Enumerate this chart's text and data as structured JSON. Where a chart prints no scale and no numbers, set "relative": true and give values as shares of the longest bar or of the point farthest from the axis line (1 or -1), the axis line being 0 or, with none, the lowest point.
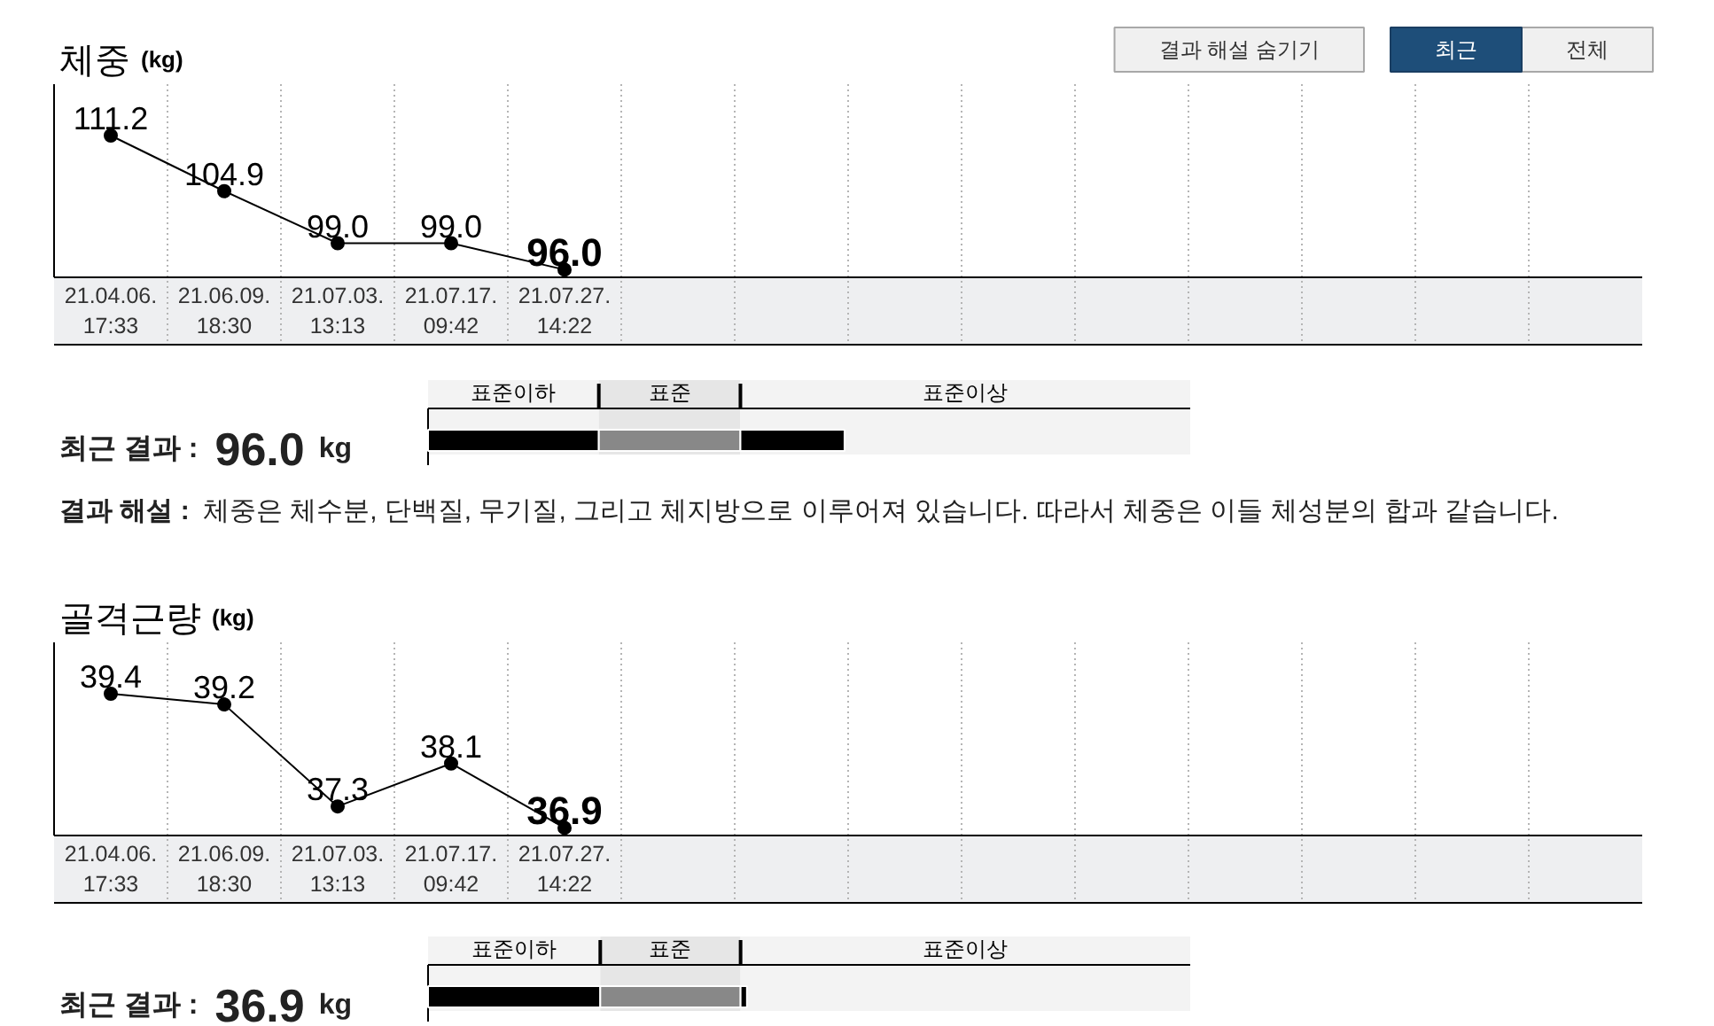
{
  "chart_data": [
    {
      "type": "line",
      "title": "체중",
      "ylabel": "(kg)",
      "categories": [
        "21.04.06.\n17:33",
        "21.06.09.\n18:30",
        "21.07.03.\n13:13",
        "21.07.17.\n09:42",
        "21.07.27.\n14:22",
        null,
        null,
        null,
        null,
        null,
        null,
        null,
        null,
        null
      ],
      "values": [
        111.2,
        104.9,
        99.0,
        99.0,
        96.0,
        null,
        null,
        null,
        null,
        null,
        null,
        null,
        null,
        null
      ],
      "value_labels": [
        "111.2",
        "104.9",
        "99.0",
        "99.0",
        "96.0",
        null,
        null,
        null,
        null,
        null,
        null,
        null,
        null,
        null
      ],
      "color": "#000000",
      "marker": "circle",
      "line_style": "solid",
      "grid": "x",
      "annotations": [
        "결과 해설 숨기기",
        "최근",
        "전체"
      ]
    },
    {
      "type": "bar",
      "orientation": "horizontal",
      "stacked": true,
      "relative": true,
      "ylabel": "최근 결과 :",
      "categories": [
        null
      ],
      "series": [
        {
          "color": "#000000",
          "values": [
            0.41
          ]
        },
        {
          "color": "#888888",
          "values": [
            0.34
          ]
        },
        {
          "color": "#000000",
          "values": [
            0.25
          ]
        }
      ],
      "bands": [
        {
          "axis": "x",
          "from": 0,
          "to": 0.41,
          "label": "표준이하",
          "color": "#f3f3f3"
        },
        {
          "axis": "x",
          "from": 0.41,
          "to": 0.75,
          "label": "표준",
          "color": "#e6e6e6"
        },
        {
          "axis": "x",
          "from": 0.75,
          "to": 1.83,
          "label": "표준이상",
          "color": "#f3f3f3"
        }
      ],
      "annotations": [
        "96.0",
        "kg",
        "결과 해설 :",
        "체중은 체수분, 단백질, 무기질, 그리고 체지방으로 이루어져 있습니다. 따라서 체중은 이들 체성분의 합과 같습니다."
      ]
    },
    {
      "type": "line",
      "title": "골격근량",
      "ylabel": "(kg)",
      "categories": [
        "21.04.06.\n17:33",
        "21.06.09.\n18:30",
        "21.07.03.\n13:13",
        "21.07.17.\n09:42",
        "21.07.27.\n14:22",
        null,
        null,
        null,
        null,
        null,
        null,
        null,
        null,
        null
      ],
      "values": [
        39.4,
        39.2,
        37.3,
        38.1,
        36.9,
        null,
        null,
        null,
        null,
        null,
        null,
        null,
        null,
        null
      ],
      "value_labels": [
        "39.4",
        "39.2",
        "37.3",
        "38.1",
        "36.9",
        null,
        null,
        null,
        null,
        null,
        null,
        null,
        null,
        null
      ],
      "color": "#000000",
      "marker": "circle",
      "line_style": "solid",
      "grid": "x"
    },
    {
      "type": "bar",
      "orientation": "horizontal",
      "stacked": true,
      "relative": true,
      "ylabel": "최근 결과 :",
      "categories": [
        null
      ],
      "series": [
        {
          "color": "#000000",
          "values": [
            0.54
          ]
        },
        {
          "color": "#888888",
          "values": [
            0.44
          ]
        },
        {
          "color": "#000000",
          "values": [
            0.02
          ]
        }
      ],
      "bands": [
        {
          "axis": "x",
          "from": 0,
          "to": 0.54,
          "label": "표준이하",
          "color": "#f3f3f3"
        },
        {
          "axis": "x",
          "from": 0.54,
          "to": 0.98,
          "label": "표준",
          "color": "#e6e6e6"
        },
        {
          "axis": "x",
          "from": 0.98,
          "to": 2.39,
          "label": "표준이상",
          "color": "#f3f3f3"
        }
      ],
      "annotations": [
        "36.9",
        "kg"
      ]
    }
  ]
}
